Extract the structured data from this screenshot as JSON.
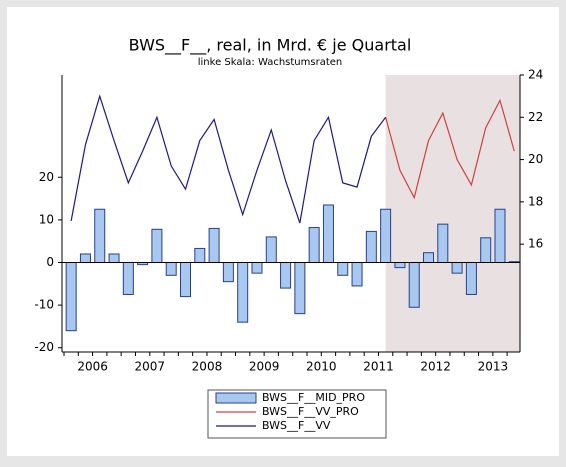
{
  "chart_data": {
    "type": "bar_line",
    "title": "BWS__F__, real, in Mrd. € je Quartal",
    "subtitle": "linke Skala: Wachstumsraten",
    "x": [
      2006,
      2006.25,
      2006.5,
      2006.75,
      2007,
      2007.25,
      2007.5,
      2007.75,
      2008,
      2008.25,
      2008.5,
      2008.75,
      2009,
      2009.25,
      2009.5,
      2009.75,
      2010,
      2010.25,
      2010.5,
      2010.75,
      2011,
      2011.25,
      2011.5,
      2011.75,
      2012,
      2012.25,
      2012.5,
      2012.75,
      2013,
      2013.25,
      2013.5,
      2013.75
    ],
    "xlim": [
      2005.84,
      2013.85
    ],
    "xticks": [
      {
        "value": 2006.375,
        "label": "2006"
      },
      {
        "value": 2007.375,
        "label": "2007"
      },
      {
        "value": 2008.375,
        "label": "2008"
      },
      {
        "value": 2009.375,
        "label": "2009"
      },
      {
        "value": 2010.375,
        "label": "2010"
      },
      {
        "value": 2011.375,
        "label": "2011"
      },
      {
        "value": 2012.375,
        "label": "2012"
      },
      {
        "value": 2013.375,
        "label": "2013"
      }
    ],
    "ylim": [
      -21,
      44
    ],
    "yticks": [
      -20,
      -10,
      0,
      10,
      20
    ],
    "y2lim": [
      10.9,
      24
    ],
    "y2ticks": [
      16,
      18,
      20,
      22,
      24
    ],
    "shaded_region": [
      2011.5,
      2013.85
    ],
    "series": [
      {
        "name": "BWS__F__MID_PRO",
        "type": "bar",
        "axis": "y",
        "color": "#a8c8f0",
        "values": [
          -16,
          2,
          12.5,
          2,
          -7.5,
          -0.5,
          7.8,
          -3,
          -8,
          3.3,
          8,
          -4.5,
          -14,
          -2.5,
          6,
          -6,
          -12,
          8.2,
          13.5,
          -3,
          -5.5,
          7.3,
          12.5,
          -1.2,
          -10.5,
          2.3,
          9,
          -2.5,
          -7.5,
          5.8,
          12.5,
          0.2
        ]
      },
      {
        "name": "BWS__F__VV_PRO",
        "type": "line",
        "axis": "y2",
        "color": "#d04040",
        "values": [
          null,
          null,
          null,
          null,
          null,
          null,
          null,
          null,
          null,
          null,
          null,
          null,
          null,
          null,
          null,
          null,
          null,
          null,
          null,
          null,
          null,
          null,
          22.0,
          19.5,
          18.2,
          20.9,
          22.2,
          20.0,
          18.8,
          21.5,
          22.8,
          20.4
        ]
      },
      {
        "name": "BWS__F__VV",
        "type": "line",
        "axis": "y2",
        "color": "#1a1a8c",
        "values": [
          17.1,
          20.7,
          23.0,
          20.9,
          18.9,
          20.4,
          22.0,
          19.7,
          18.6,
          20.9,
          21.9,
          19.5,
          17.4,
          19.5,
          21.4,
          19.0,
          17.0,
          20.9,
          22.0,
          18.9,
          18.7,
          21.1,
          22.0,
          null,
          null,
          null,
          null,
          null,
          null,
          null,
          null,
          null
        ]
      }
    ]
  }
}
